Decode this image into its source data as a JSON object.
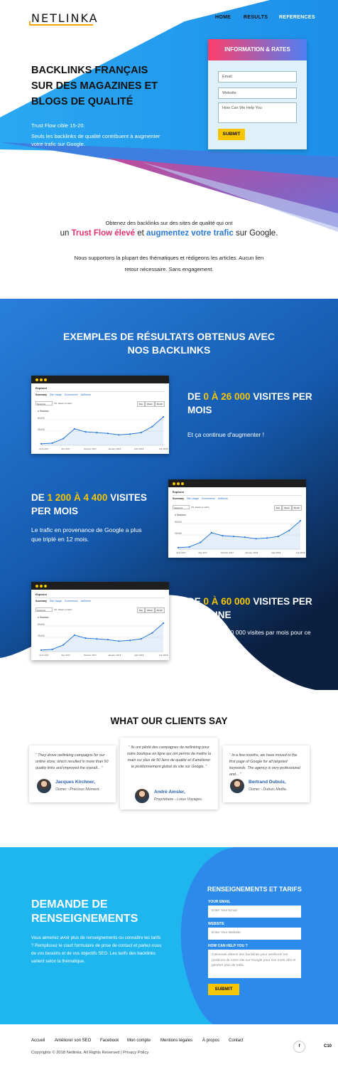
{
  "brand": {
    "logo": "NETLINKA",
    "accent": "#f2a500"
  },
  "nav": {
    "home": "HOME",
    "results": "RESULTS",
    "references": "REFERENCES"
  },
  "hero": {
    "title_lines": [
      "BACKLINKS FRANÇAIS",
      "SUR DES MAGAZINES ET",
      "BLOGS DE QUALITÉ"
    ],
    "line1": "Trust Flow cible 15-20.",
    "line2": "Seuls les backlinks de qualité contribuent à augmenter votre trafic sur Google."
  },
  "info_form": {
    "title": "INFORMATION & RATES",
    "email_placeholder": "Email",
    "website_placeholder": "Website",
    "help_placeholder": "How Can We Help You",
    "submit": "SUBMIT"
  },
  "intro": {
    "line1": "Obtenez des backlinks sur des sites de qualité qui ont",
    "line2_prefix": "un ",
    "line2_trust": "Trust Flow élevé",
    "line2_mid": " et ",
    "line2_traffic": "augmentez votre trafic",
    "line2_suffix": " sur Google.",
    "line3": "Nous supportons la plupart des thématiques et rédigeons les articles. Aucun lien retour nécessaire. Sans engagement."
  },
  "results": {
    "title": "EXEMPLES DE RÉSULTATS OBTENUS AVEC NOS BACKLINKS",
    "items": [
      {
        "pre": "DE ",
        "hl": "0 À 26 000",
        "post": " VISITES PER MOIS",
        "text": "Et ça continue d'augmenter !"
      },
      {
        "pre": "DE ",
        "hl": "1 200 À 4 400",
        "post": " VISITES PER MOIS",
        "text": "Le trafic en provenance de Google a plus que triplé en 12 mois."
      },
      {
        "pre": "DE ",
        "hl": "0 À 60 000",
        "post": " VISITES PER SEMAINE",
        "text": "C'est plus de 240 000 visites par mois pour ce site."
      }
    ]
  },
  "screenshot": {
    "tab": "Explorer",
    "nav": [
      "Summary",
      "Site Usage",
      "Ecommerce",
      "AdSense"
    ],
    "select": "Sessions",
    "vs": "VS.  Select a metric",
    "pills": [
      "Day",
      "Week",
      "Month"
    ],
    "legend": "Sessions",
    "y_labels": [
      "50,000",
      "25,000"
    ],
    "x_labels": [
      "April 2017",
      "July 2017",
      "October 2017",
      "January 2018",
      "April 2018",
      "July 2018"
    ],
    "line_color": "#2a7ad6"
  },
  "chart_data": [
    {
      "type": "line",
      "series": [
        {
          "name": "Sessions",
          "values": [
            2,
            3,
            9,
            22,
            18,
            17,
            16,
            14,
            15,
            17,
            25,
            38
          ]
        }
      ]
    },
    {
      "type": "line",
      "series": [
        {
          "name": "Sessions",
          "values": [
            2,
            3,
            9,
            22,
            18,
            17,
            16,
            14,
            15,
            17,
            25,
            38
          ]
        }
      ]
    },
    {
      "type": "line",
      "series": [
        {
          "name": "Sessions",
          "values": [
            2,
            3,
            9,
            22,
            18,
            17,
            16,
            14,
            15,
            17,
            25,
            38
          ]
        }
      ]
    }
  ],
  "clients": {
    "title": "WHAT OUR CLIENTS SAY",
    "items": [
      {
        "quote": "“   They drove netlinking campaigns for our online store, which resulted in more than 50 quality links and improved the overall...  ”",
        "name": "Jacques Kirchner,",
        "role": "Owner - Precious Moment."
      },
      {
        "quote": "“  Ils ont piloté des campagnes de netlinking pour notre boutique en ligne qui ont permis de mettre la main sur plus de 50 liens de qualité et d'améliorer le positionnement global du site sur Google.  ”",
        "name": "André Amsler,",
        "role": "Propriétaire - Lotus Voyages."
      },
      {
        "quote": "“   In a few months, we have moved to the first page of Google for all targeted keywords. The agency is very professional and...  ”",
        "name": "Bertrand Dubuis,",
        "role": "Owner - Dubuis Media."
      }
    ]
  },
  "contact": {
    "title_lines": [
      "DEMANDE DE",
      "RENSEIGNEMENTS"
    ],
    "text": "Vous aimeriez avoir plus de renseignements ou connaître les tarifs ? Remplissez le court formulaire de prise de contact et parlez-nous de vos besoins et de vos objectifs SEO. Les tarifs des backlinks varient selon la thématique.",
    "form_title": "RENSEIGNEMENTS ET TARIFS",
    "email_label": "YOUR EMAIL",
    "email_placeholder": "Enter Your Email",
    "website_label": "WEBSITE",
    "website_placeholder": "Enter Your Website",
    "help_label": "HOW CAN HELP YOU ?",
    "help_placeholder": "J'aimerais obtenir des backlinks pour améliorer les positions de notre site sur Google pour nos mots clés et générer plus de trafic.",
    "submit": "SUBMIT"
  },
  "footer": {
    "links": [
      "Accueil",
      "Améliorer son SEO",
      "Facebook",
      "Mon compte",
      "Mentions légales",
      "À propos",
      "Contact"
    ],
    "copyright": "Copyrights © 2018 Netlinka.  All Rights Reserved    |    Privacy Policy",
    "fb": "f",
    "badge": "C10"
  }
}
